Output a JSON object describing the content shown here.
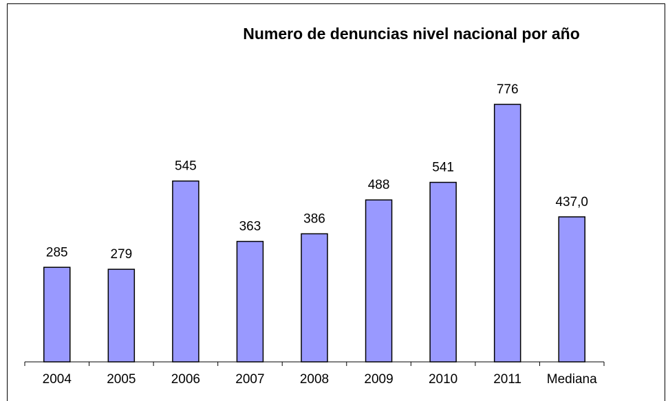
{
  "chart_data": {
    "type": "bar",
    "title": "Numero de denuncias nivel nacional por año",
    "categories": [
      "2004",
      "2005",
      "2006",
      "2007",
      "2008",
      "2009",
      "2010",
      "2011",
      "Mediana"
    ],
    "values": [
      285,
      279,
      545,
      363,
      386,
      488,
      541,
      776,
      437
    ],
    "value_labels": [
      "285",
      "279",
      "545",
      "363",
      "386",
      "488",
      "541",
      "776",
      "437,0"
    ],
    "color": "#9999ff"
  }
}
